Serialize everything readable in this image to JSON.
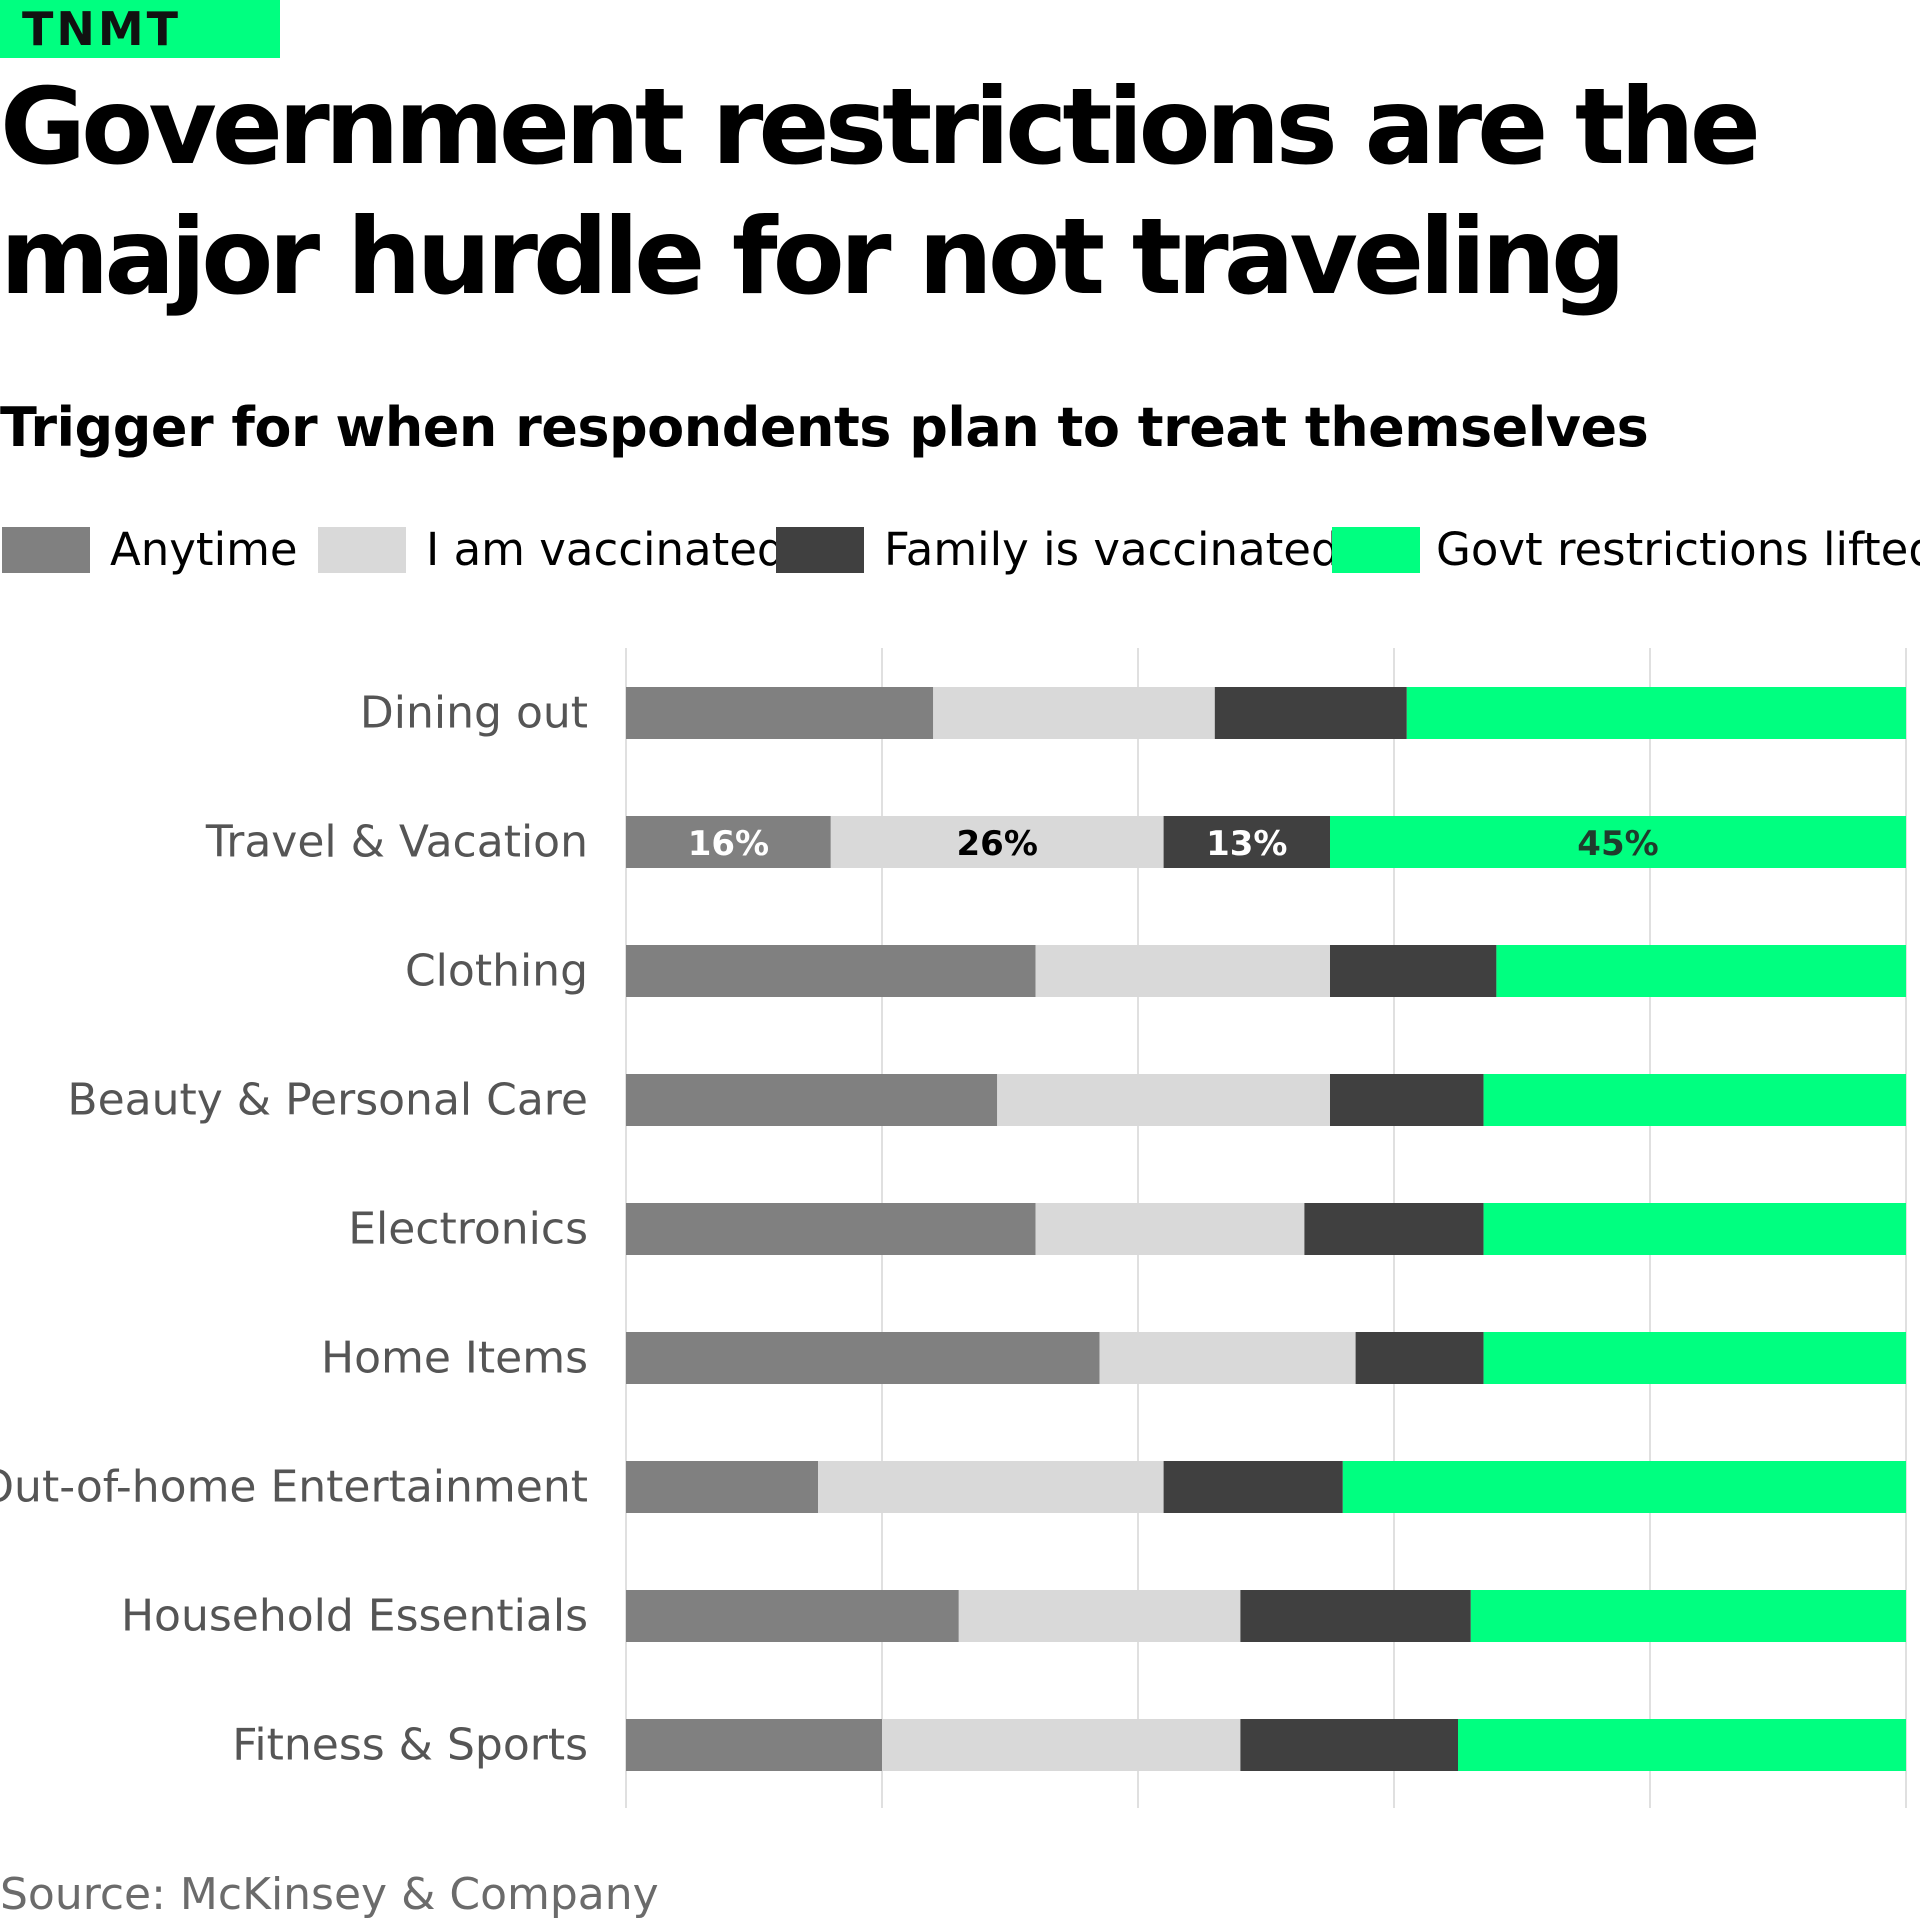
{
  "brand": {
    "logo_text": "TNMT",
    "color": "#00ff80"
  },
  "headline": "Government restrictions are the major hurdle for not traveling",
  "source": "Source: McKinsey & Company",
  "colors": {
    "anytime": "#808080",
    "i_am_vaccinated": "#d9d9d9",
    "family_is_vaccinated": "#404040",
    "govt_restrictions_lifted": "#00ff80"
  },
  "chart_data": {
    "type": "bar",
    "orientation": "horizontal",
    "stacked": true,
    "title": "Trigger for when respondents plan to treat themselves",
    "xlabel": "",
    "ylabel": "",
    "xlim": [
      0,
      100
    ],
    "grid": true,
    "legend_position": "top",
    "categories": [
      "Dining out",
      "Travel & Vacation",
      "Clothing",
      "Beauty & Personal Care",
      "Electronics",
      "Home Items",
      "Out-of-home Entertainment",
      "Household Essentials",
      "Fitness & Sports"
    ],
    "series": [
      {
        "name": "Anytime",
        "color": "#808080",
        "values": [
          24,
          16,
          32,
          29,
          32,
          37,
          15,
          26,
          20
        ]
      },
      {
        "name": "I am vaccinated",
        "color": "#d9d9d9",
        "values": [
          22,
          26,
          23,
          26,
          21,
          20,
          27,
          22,
          28
        ]
      },
      {
        "name": "Family is vaccinated",
        "color": "#404040",
        "values": [
          15,
          13,
          13,
          12,
          14,
          10,
          14,
          18,
          17
        ]
      },
      {
        "name": "Govt restrictions lifted",
        "color": "#00ff80",
        "values": [
          39,
          45,
          32,
          33,
          33,
          33,
          44,
          34,
          35
        ]
      }
    ],
    "data_labels": [
      {
        "category": "Travel & Vacation",
        "series": "Anytime",
        "text": "16%",
        "color": "#ffffff"
      },
      {
        "category": "Travel & Vacation",
        "series": "I am vaccinated",
        "text": "26%",
        "color": "#000000"
      },
      {
        "category": "Travel & Vacation",
        "series": "Family is vaccinated",
        "text": "13%",
        "color": "#ffffff"
      },
      {
        "category": "Travel & Vacation",
        "series": "Govt restrictions lifted",
        "text": "45%",
        "color": "#1f3b2c"
      }
    ]
  }
}
